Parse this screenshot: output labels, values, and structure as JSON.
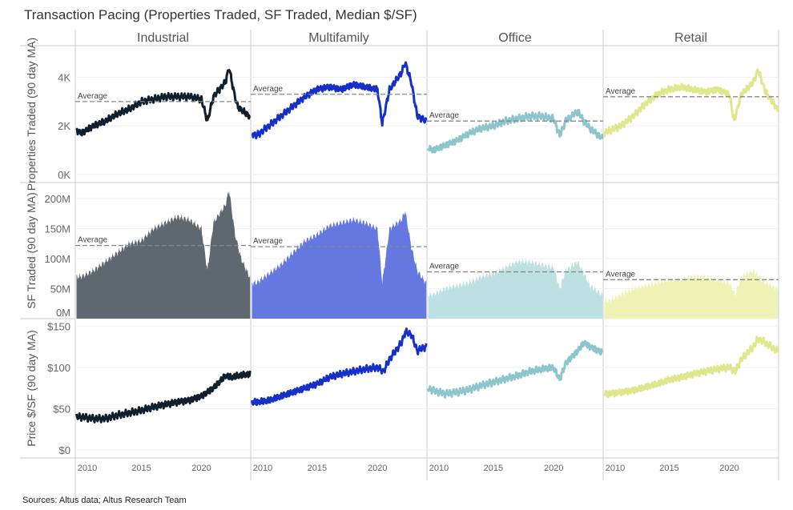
{
  "chart_data": {
    "type": "line",
    "title": "Transaction Pacing (Properties Traded, SF Traded, Median $/SF)",
    "source": "Sources: Altus data; Altus Research Team",
    "columns": [
      "Industrial",
      "Multifamily",
      "Office",
      "Retail"
    ],
    "x_ticks": [
      "2010",
      "2015",
      "2020"
    ],
    "xlim": [
      2009.5,
      2024.1
    ],
    "average_label": "Average",
    "colors": {
      "Industrial": {
        "line": "#0f1f2e",
        "fill": "#5f6870"
      },
      "Multifamily": {
        "line": "#1530c8",
        "fill": "#6478e0"
      },
      "Office": {
        "line": "#8cc5cc",
        "fill": "#bde0e3"
      },
      "Retail": {
        "line": "#e0e68c",
        "fill": "#eff2b4"
      }
    },
    "rows": [
      {
        "ylabel": "Properties Traded (90 day MA)",
        "type": "line",
        "unit": "K",
        "ylim": [
          0,
          5.3
        ],
        "ticks": [
          {
            "v": 0,
            "label": "0K"
          },
          {
            "v": 2,
            "label": "2K"
          },
          {
            "v": 4,
            "label": "4K"
          }
        ],
        "averages": [
          3.0,
          3.3,
          2.2,
          3.2
        ],
        "series": [
          {
            "x": [
              2009.6,
              2010,
              2011,
              2012,
              2013,
              2014,
              2015,
              2016,
              2017,
              2018,
              2019,
              2020,
              2020.5,
              2021,
              2022,
              2022.3,
              2022.7,
              2023,
              2024
            ],
            "y": [
              1.8,
              1.7,
              2.0,
              2.2,
              2.5,
              2.7,
              3.0,
              3.1,
              3.2,
              3.2,
              3.2,
              3.1,
              2.2,
              3.2,
              3.8,
              4.4,
              3.4,
              2.8,
              2.4
            ]
          },
          {
            "x": [
              2009.6,
              2010,
              2011,
              2012,
              2013,
              2014,
              2015,
              2016,
              2017,
              2018,
              2019,
              2020,
              2020.4,
              2021,
              2022,
              2022.3,
              2022.8,
              2023.3,
              2024
            ],
            "y": [
              1.7,
              1.6,
              2.0,
              2.4,
              2.8,
              3.2,
              3.5,
              3.6,
              3.5,
              3.7,
              3.6,
              3.5,
              2.1,
              3.5,
              4.2,
              4.6,
              3.8,
              2.4,
              2.2
            ]
          },
          {
            "x": [
              2009.6,
              2010,
              2011,
              2012,
              2013,
              2014,
              2015,
              2016,
              2017,
              2018,
              2019,
              2020,
              2020.5,
              2021,
              2022,
              2022.5,
              2023,
              2024
            ],
            "y": [
              1.1,
              1.0,
              1.2,
              1.4,
              1.7,
              1.9,
              2.0,
              2.2,
              2.3,
              2.4,
              2.4,
              2.3,
              1.6,
              2.2,
              2.6,
              2.2,
              1.9,
              1.5
            ]
          },
          {
            "x": [
              2009.6,
              2010,
              2011,
              2012,
              2013,
              2014,
              2015,
              2016,
              2017,
              2018,
              2019,
              2020,
              2020.4,
              2021,
              2022,
              2022.4,
              2023,
              2024
            ],
            "y": [
              1.7,
              1.8,
              2.0,
              2.4,
              2.9,
              3.3,
              3.5,
              3.6,
              3.5,
              3.4,
              3.5,
              3.3,
              2.2,
              3.3,
              3.8,
              4.3,
              3.4,
              2.7
            ]
          }
        ]
      },
      {
        "ylabel": "SF Traded (90 day MA)",
        "type": "area",
        "unit": "M",
        "ylim": [
          0,
          227
        ],
        "ticks": [
          {
            "v": 0,
            "label": "0M"
          },
          {
            "v": 50,
            "label": "50M"
          },
          {
            "v": 100,
            "label": "100M"
          },
          {
            "v": 150,
            "label": "150M"
          },
          {
            "v": 200,
            "label": "200M"
          }
        ],
        "averages": [
          122,
          120,
          78,
          65
        ],
        "series": [
          {
            "x": [
              2009.6,
              2010,
              2011,
              2012,
              2013,
              2014,
              2015,
              2016,
              2017,
              2018,
              2019,
              2020,
              2020.5,
              2021,
              2022,
              2022.3,
              2022.8,
              2023.3,
              2024
            ],
            "y": [
              70,
              70,
              80,
              95,
              110,
              125,
              130,
              150,
              160,
              170,
              165,
              150,
              80,
              160,
              190,
              215,
              140,
              100,
              70
            ]
          },
          {
            "x": [
              2009.6,
              2010,
              2011,
              2012,
              2013,
              2014,
              2015,
              2016,
              2017,
              2018,
              2019,
              2020,
              2020.4,
              2021,
              2022,
              2022.3,
              2022.8,
              2023.3,
              2024
            ],
            "y": [
              60,
              60,
              75,
              90,
              110,
              130,
              140,
              155,
              160,
              165,
              160,
              150,
              60,
              150,
              165,
              180,
              120,
              80,
              60
            ]
          },
          {
            "x": [
              2009.6,
              2010,
              2011,
              2012,
              2013,
              2014,
              2015,
              2016,
              2017,
              2018,
              2019,
              2020,
              2020.5,
              2021,
              2022,
              2022.5,
              2023,
              2024
            ],
            "y": [
              40,
              40,
              50,
              55,
              60,
              70,
              75,
              85,
              95,
              95,
              90,
              85,
              50,
              80,
              95,
              75,
              55,
              40
            ]
          },
          {
            "x": [
              2009.6,
              2010,
              2011,
              2012,
              2013,
              2014,
              2015,
              2016,
              2017,
              2018,
              2019,
              2020,
              2020.5,
              2021,
              2022,
              2022.5,
              2023,
              2024
            ],
            "y": [
              30,
              30,
              40,
              50,
              55,
              60,
              65,
              65,
              70,
              70,
              65,
              60,
              40,
              70,
              80,
              70,
              60,
              50
            ]
          }
        ]
      },
      {
        "ylabel": "Price $/SF (90 day MA)",
        "type": "line",
        "unit": "$",
        "ylim": [
          0,
          159
        ],
        "ticks": [
          {
            "v": 0,
            "label": "$0"
          },
          {
            "v": 50,
            "label": "$50"
          },
          {
            "v": 100,
            "label": "$100"
          },
          {
            "v": 150,
            "label": "$150"
          }
        ],
        "averages": [],
        "series": [
          {
            "x": [
              2009.6,
              2010,
              2011,
              2012,
              2013,
              2014,
              2015,
              2016,
              2017,
              2018,
              2019,
              2020,
              2021,
              2022,
              2022.5,
              2023,
              2024
            ],
            "y": [
              40,
              40,
              38,
              38,
              42,
              45,
              48,
              52,
              55,
              58,
              60,
              65,
              75,
              90,
              88,
              90,
              92
            ]
          },
          {
            "x": [
              2009.6,
              2010,
              2011,
              2012,
              2013,
              2014,
              2015,
              2016,
              2017,
              2018,
              2019,
              2020,
              2020.5,
              2021,
              2022,
              2022.3,
              2022.8,
              2023.3,
              2024
            ],
            "y": [
              58,
              58,
              60,
              65,
              70,
              75,
              80,
              88,
              92,
              95,
              98,
              100,
              95,
              110,
              130,
              143,
              140,
              120,
              125
            ]
          },
          {
            "x": [
              2009.6,
              2010,
              2011,
              2012,
              2013,
              2014,
              2015,
              2016,
              2017,
              2018,
              2019,
              2020,
              2020.5,
              2021,
              2022,
              2022.5,
              2023,
              2024
            ],
            "y": [
              75,
              72,
              68,
              70,
              73,
              78,
              82,
              86,
              90,
              95,
              98,
              100,
              85,
              105,
              120,
              130,
              125,
              118
            ]
          },
          {
            "x": [
              2009.6,
              2010,
              2011,
              2012,
              2013,
              2014,
              2015,
              2016,
              2017,
              2018,
              2019,
              2020,
              2020.5,
              2021,
              2022,
              2022.4,
              2023,
              2024
            ],
            "y": [
              68,
              68,
              70,
              72,
              76,
              80,
              85,
              88,
              92,
              95,
              98,
              100,
              95,
              110,
              125,
              135,
              130,
              120
            ]
          }
        ]
      }
    ]
  }
}
